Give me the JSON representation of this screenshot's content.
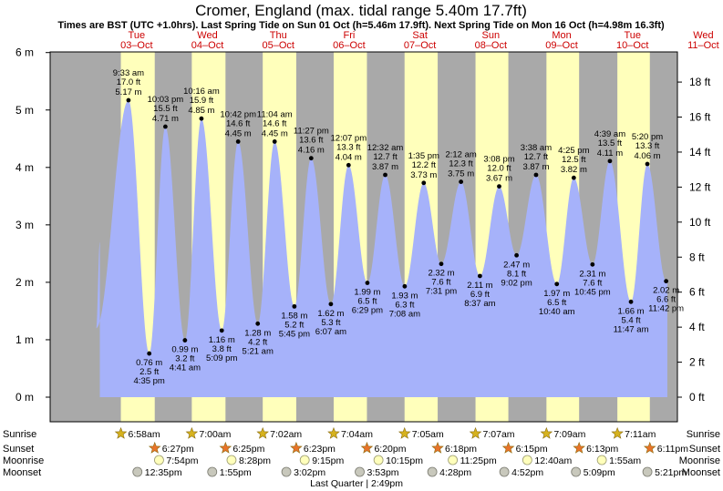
{
  "chart_data": {
    "type": "area",
    "title": "Cromer, England (max. tidal range 5.40m 17.7ft)",
    "subtitle": "Times are BST (UTC +1.0hrs). Last Spring Tide on Sun 01 Oct (h=5.46m 17.9ft). Next Spring Tide on Mon 16 Oct (h=4.98m 16.3ft)",
    "xlabel": "",
    "ylabel": "",
    "ylim": [
      -0.3,
      6.0
    ],
    "y2lim_ft": [
      -1,
      19.7
    ],
    "y_ticks": [
      {
        "v": 0,
        "label": "0 m"
      },
      {
        "v": 1,
        "label": "1 m"
      },
      {
        "v": 2,
        "label": "2 m"
      },
      {
        "v": 3,
        "label": "3 m"
      },
      {
        "v": 4,
        "label": "4 m"
      },
      {
        "v": 5,
        "label": "5 m"
      },
      {
        "v": 6,
        "label": "6 m"
      }
    ],
    "y2_ticks": [
      {
        "v": 0,
        "label": "0 ft"
      },
      {
        "v": 2,
        "label": "2 ft"
      },
      {
        "v": 4,
        "label": "4 ft"
      },
      {
        "v": 6,
        "label": "6 ft"
      },
      {
        "v": 8,
        "label": "8 ft"
      },
      {
        "v": 10,
        "label": "10 ft"
      },
      {
        "v": 12,
        "label": "12 ft"
      },
      {
        "v": 14,
        "label": "14 ft"
      },
      {
        "v": 16,
        "label": "16 ft"
      },
      {
        "v": 18,
        "label": "18 ft"
      }
    ],
    "grid": false,
    "x_range_days": [
      -0.75,
      8.45
    ],
    "days": [
      {
        "name": "Tue",
        "date": "03–Oct",
        "sunrise": 6.967,
        "sunset": 18.45
      },
      {
        "name": "Wed",
        "date": "04–Oct",
        "sunrise": 7.0,
        "sunset": 18.417
      },
      {
        "name": "Thu",
        "date": "05–Oct",
        "sunrise": 7.033,
        "sunset": 18.383
      },
      {
        "name": "Fri",
        "date": "06–Oct",
        "sunrise": 7.067,
        "sunset": 18.333
      },
      {
        "name": "Sat",
        "date": "07–Oct",
        "sunrise": 7.083,
        "sunset": 18.3
      },
      {
        "name": "Sun",
        "date": "08–Oct",
        "sunrise": 7.117,
        "sunset": 18.25
      },
      {
        "name": "Mon",
        "date": "09–Oct",
        "sunrise": 7.15,
        "sunset": 18.217
      },
      {
        "name": "Tue",
        "date": "10–Oct",
        "sunrise": 7.183,
        "sunset": 18.183
      },
      {
        "name": "Wed",
        "date": "11–Oct",
        "sunrise": 7.217,
        "sunset": 18.15
      }
    ],
    "extremes": [
      {
        "d": -1,
        "t": 22.6,
        "m": 1.2,
        "type": "low",
        "labeled": false
      },
      {
        "d": 0,
        "t": 9.55,
        "m": 5.17,
        "type": "high",
        "time": "9:33 am",
        "ft": "17.0 ft",
        "mlabel": "5.17 m"
      },
      {
        "d": 0,
        "t": 16.583,
        "m": 0.76,
        "type": "low",
        "time": "4:35 pm",
        "ft": "2.5 ft",
        "mlabel": "0.76 m"
      },
      {
        "d": 0,
        "t": 22.05,
        "m": 4.71,
        "type": "high",
        "time": "10:03 pm",
        "ft": "15.5 ft",
        "mlabel": "4.71 m"
      },
      {
        "d": 1,
        "t": 4.683,
        "m": 0.99,
        "type": "low",
        "time": "4:41 am",
        "ft": "3.2 ft",
        "mlabel": "0.99 m"
      },
      {
        "d": 1,
        "t": 10.267,
        "m": 4.85,
        "type": "high",
        "time": "10:16 am",
        "ft": "15.9 ft",
        "mlabel": "4.85 m"
      },
      {
        "d": 1,
        "t": 17.15,
        "m": 1.16,
        "type": "low",
        "time": "5:09 pm",
        "ft": "3.8 ft",
        "mlabel": "1.16 m"
      },
      {
        "d": 1,
        "t": 22.7,
        "m": 4.45,
        "type": "high",
        "time": "10:42 pm",
        "ft": "14.6 ft",
        "mlabel": "4.45 m"
      },
      {
        "d": 2,
        "t": 5.35,
        "m": 1.28,
        "type": "low",
        "time": "5:21 am",
        "ft": "4.2 ft",
        "mlabel": "1.28 m"
      },
      {
        "d": 2,
        "t": 11.067,
        "m": 4.45,
        "type": "high",
        "time": "11:04 am",
        "ft": "14.6 ft",
        "mlabel": "4.45 m"
      },
      {
        "d": 2,
        "t": 17.75,
        "m": 1.58,
        "type": "low",
        "time": "5:45 pm",
        "ft": "5.2 ft",
        "mlabel": "1.58 m"
      },
      {
        "d": 2,
        "t": 23.45,
        "m": 4.16,
        "type": "high",
        "time": "11:27 pm",
        "ft": "13.6 ft",
        "mlabel": "4.16 m"
      },
      {
        "d": 3,
        "t": 6.117,
        "m": 1.62,
        "type": "low",
        "time": "6:07 am",
        "ft": "5.3 ft",
        "mlabel": "1.62 m"
      },
      {
        "d": 3,
        "t": 12.117,
        "m": 4.04,
        "type": "high",
        "time": "12:07 pm",
        "ft": "13.3 ft",
        "mlabel": "4.04 m"
      },
      {
        "d": 3,
        "t": 18.483,
        "m": 1.99,
        "type": "low",
        "time": "6:29 pm",
        "ft": "6.5 ft",
        "mlabel": "1.99 m"
      },
      {
        "d": 4,
        "t": 0.533,
        "m": 3.87,
        "type": "high",
        "time": "12:32 am",
        "ft": "12.7 ft",
        "mlabel": "3.87 m"
      },
      {
        "d": 4,
        "t": 7.133,
        "m": 1.93,
        "type": "low",
        "time": "7:08 am",
        "ft": "6.3 ft",
        "mlabel": "1.93 m"
      },
      {
        "d": 4,
        "t": 13.583,
        "m": 3.73,
        "type": "high",
        "time": "1:35 pm",
        "ft": "12.2 ft",
        "mlabel": "3.73 m"
      },
      {
        "d": 4,
        "t": 19.517,
        "m": 2.32,
        "type": "low",
        "time": "7:31 pm",
        "ft": "7.6 ft",
        "mlabel": "2.32 m"
      },
      {
        "d": 5,
        "t": 2.2,
        "m": 3.75,
        "type": "high",
        "time": "2:12 am",
        "ft": "12.3 ft",
        "mlabel": "3.75 m"
      },
      {
        "d": 5,
        "t": 8.617,
        "m": 2.11,
        "type": "low",
        "time": "8:37 am",
        "ft": "6.9 ft",
        "mlabel": "2.11 m"
      },
      {
        "d": 5,
        "t": 15.133,
        "m": 3.67,
        "type": "high",
        "time": "3:08 pm",
        "ft": "12.0 ft",
        "mlabel": "3.67 m"
      },
      {
        "d": 5,
        "t": 21.033,
        "m": 2.47,
        "type": "low",
        "time": "9:02 pm",
        "ft": "8.1 ft",
        "mlabel": "2.47 m"
      },
      {
        "d": 6,
        "t": 3.633,
        "m": 3.87,
        "type": "high",
        "time": "3:38 am",
        "ft": "12.7 ft",
        "mlabel": "3.87 m"
      },
      {
        "d": 6,
        "t": 10.667,
        "m": 1.97,
        "type": "low",
        "time": "10:40 am",
        "ft": "6.5 ft",
        "mlabel": "1.97 m"
      },
      {
        "d": 6,
        "t": 16.417,
        "m": 3.82,
        "type": "high",
        "time": "4:25 pm",
        "ft": "12.5 ft",
        "mlabel": "3.82 m"
      },
      {
        "d": 6,
        "t": 22.75,
        "m": 2.31,
        "type": "low",
        "time": "10:45 pm",
        "ft": "7.6 ft",
        "mlabel": "2.31 m"
      },
      {
        "d": 7,
        "t": 4.65,
        "m": 4.11,
        "type": "high",
        "time": "4:39 am",
        "ft": "13.5 ft",
        "mlabel": "4.11 m"
      },
      {
        "d": 7,
        "t": 11.783,
        "m": 1.66,
        "type": "low",
        "time": "11:47 am",
        "ft": "5.4 ft",
        "mlabel": "1.66 m"
      },
      {
        "d": 7,
        "t": 17.333,
        "m": 4.06,
        "type": "high",
        "time": "5:20 pm",
        "ft": "13.3 ft",
        "mlabel": "4.06 m"
      },
      {
        "d": 7,
        "t": 23.7,
        "m": 2.02,
        "type": "low",
        "time": "11:42 pm",
        "ft": "6.6 ft",
        "mlabel": "2.02 m"
      }
    ],
    "curve_start": {
      "d": -1,
      "t": 23.85,
      "m": 2.7
    },
    "curve_end": {
      "d": 8,
      "t": 0.1,
      "m": 2.0
    },
    "sunrise_row": [
      {
        "d": 0,
        "t": 6.967,
        "label": "6:58am"
      },
      {
        "d": 1,
        "t": 7.0,
        "label": "7:00am"
      },
      {
        "d": 2,
        "t": 7.033,
        "label": "7:02am"
      },
      {
        "d": 3,
        "t": 7.067,
        "label": "7:04am"
      },
      {
        "d": 4,
        "t": 7.083,
        "label": "7:05am"
      },
      {
        "d": 5,
        "t": 7.117,
        "label": "7:07am"
      },
      {
        "d": 6,
        "t": 7.15,
        "label": "7:09am"
      },
      {
        "d": 7,
        "t": 7.183,
        "label": "7:11am"
      }
    ],
    "sunset_row": [
      {
        "d": 0,
        "t": 18.45,
        "label": "6:27pm"
      },
      {
        "d": 1,
        "t": 18.417,
        "label": "6:25pm"
      },
      {
        "d": 2,
        "t": 18.383,
        "label": "6:23pm"
      },
      {
        "d": 3,
        "t": 18.333,
        "label": "6:20pm"
      },
      {
        "d": 4,
        "t": 18.3,
        "label": "6:18pm"
      },
      {
        "d": 5,
        "t": 18.25,
        "label": "6:15pm"
      },
      {
        "d": 6,
        "t": 18.217,
        "label": "6:13pm"
      },
      {
        "d": 7,
        "t": 18.183,
        "label": "6:11pm"
      }
    ],
    "moonrise_row": [
      {
        "d": 0,
        "t": 19.9,
        "label": "7:54pm"
      },
      {
        "d": 1,
        "t": 20.467,
        "label": "8:28pm"
      },
      {
        "d": 2,
        "t": 21.25,
        "label": "9:15pm"
      },
      {
        "d": 3,
        "t": 22.25,
        "label": "10:15pm"
      },
      {
        "d": 4,
        "t": 23.417,
        "label": "11:25pm"
      },
      {
        "d": 6,
        "t": 0.667,
        "label": "12:40am"
      },
      {
        "d": 7,
        "t": 1.917,
        "label": "1:55am"
      }
    ],
    "moonset_row": [
      {
        "d": 0,
        "t": 12.583,
        "label": "12:35pm"
      },
      {
        "d": 1,
        "t": 13.917,
        "label": "1:55pm"
      },
      {
        "d": 2,
        "t": 15.033,
        "label": "3:02pm"
      },
      {
        "d": 3,
        "t": 15.883,
        "label": "3:53pm"
      },
      {
        "d": 4,
        "t": 16.467,
        "label": "4:28pm"
      },
      {
        "d": 5,
        "t": 16.867,
        "label": "4:52pm"
      },
      {
        "d": 6,
        "t": 17.15,
        "label": "5:09pm"
      },
      {
        "d": 7,
        "t": 17.35,
        "label": "5:21pm"
      }
    ],
    "moon_phase": {
      "d": 3,
      "t": 14.817,
      "label": "Last Quarter | 2:49pm"
    },
    "row_labels": [
      "Sunrise",
      "Sunset",
      "Moonrise",
      "Moonset"
    ],
    "colors": {
      "night": "#a9a9a9",
      "day": "#ffffbb",
      "water": "#a6b2fa",
      "label_red": "#cc0000",
      "sunrise_star": "#d6b21e",
      "sunset_star": "#e8732a",
      "moonrise": "#ffffbb",
      "moonset": "#c8c8bc"
    }
  }
}
